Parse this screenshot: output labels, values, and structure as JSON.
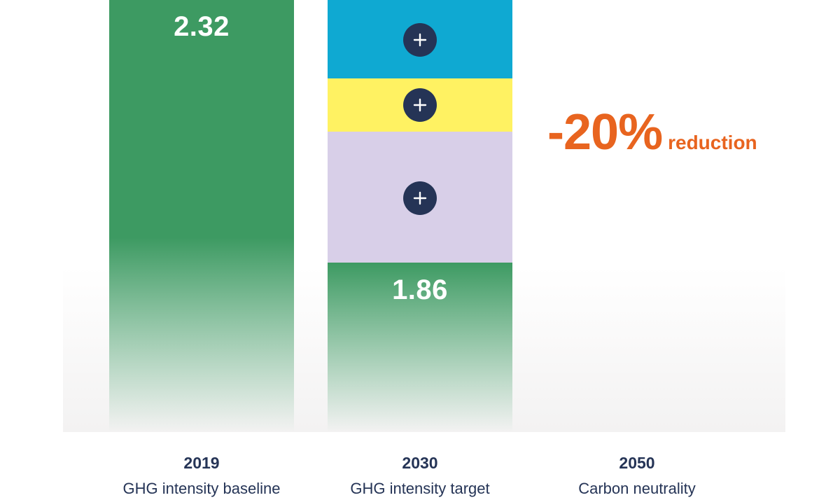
{
  "chart_data": {
    "type": "bar",
    "categories": [
      {
        "year": "2019",
        "label": "GHG intensity baseline"
      },
      {
        "year": "2030",
        "label": "GHG intensity target"
      },
      {
        "year": "2050",
        "label": "Carbon neutrality"
      }
    ],
    "values": [
      2.32,
      1.86,
      null
    ],
    "value_labels": [
      "2.32",
      "1.86",
      ""
    ],
    "stacked_reduction_segments": [
      {
        "color": "#0fa9d2"
      },
      {
        "color": "#fff262"
      },
      {
        "color": "#d8cfe8"
      }
    ],
    "annotation": {
      "value": "-20%",
      "text": "reduction"
    },
    "colors": {
      "bar": "#3d9a62",
      "annotation": "#e8641f",
      "button": "#253456",
      "label": "#253456"
    }
  }
}
